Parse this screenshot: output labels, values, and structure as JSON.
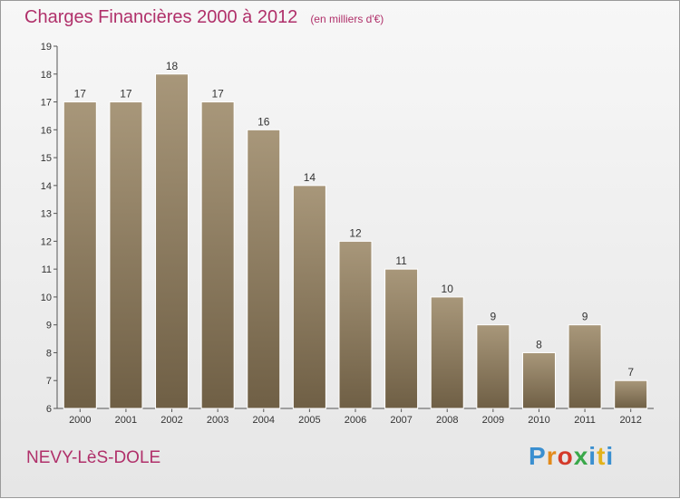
{
  "header": {
    "title": "Charges Financières 2000 à 2012",
    "unit": "(en milliers d'€)"
  },
  "commune": "NEVY-LèS-DOLE",
  "logo": {
    "text": "Proxiti",
    "colors": [
      "#3a8fd0",
      "#e28a1a",
      "#d43a2a",
      "#3aa84a",
      "#3a8fd0",
      "#e2b21a",
      "#3a8fd0"
    ]
  },
  "colors": {
    "bar_top": "#a8977a",
    "bar_bottom": "#6f5f45",
    "title": "#b0306a"
  },
  "chart_data": {
    "type": "bar",
    "title": "Charges Financières 2000 à 2012",
    "ylabel": "",
    "xlabel": "",
    "categories": [
      "2000",
      "2001",
      "2002",
      "2003",
      "2004",
      "2005",
      "2006",
      "2007",
      "2008",
      "2009",
      "2010",
      "2011",
      "2012"
    ],
    "values": [
      17,
      17,
      18,
      17,
      16,
      14,
      12,
      11,
      10,
      9,
      8,
      9,
      7
    ],
    "ylim": [
      6,
      19
    ],
    "yticks": [
      6,
      7,
      8,
      9,
      10,
      11,
      12,
      13,
      14,
      15,
      16,
      17,
      18,
      19
    ],
    "grid": false
  }
}
